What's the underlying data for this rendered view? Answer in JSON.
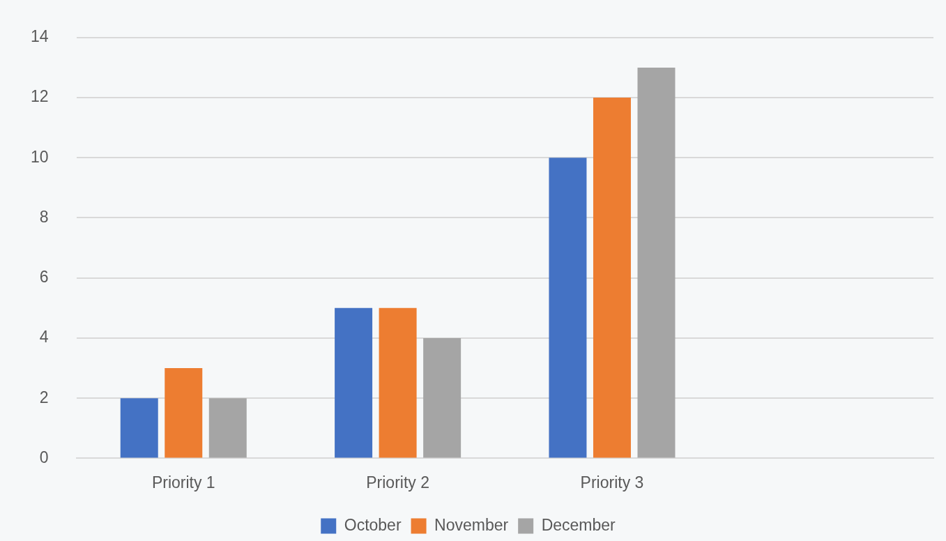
{
  "chart_data": {
    "type": "bar",
    "categories": [
      "Priority 1",
      "Priority 2",
      "Priority 3",
      null
    ],
    "series": [
      {
        "name": "October",
        "color": "#4472c4",
        "values": [
          2,
          5,
          10,
          null
        ]
      },
      {
        "name": "November",
        "color": "#ed7d31",
        "values": [
          3,
          5,
          12,
          null
        ]
      },
      {
        "name": "December",
        "color": "#a5a5a5",
        "values": [
          2,
          4,
          13,
          null
        ]
      }
    ],
    "ylim": [
      0,
      14
    ],
    "yticks": [
      0,
      2,
      4,
      6,
      8,
      10,
      12,
      14
    ],
    "grid": "y",
    "legend": "bottom"
  }
}
